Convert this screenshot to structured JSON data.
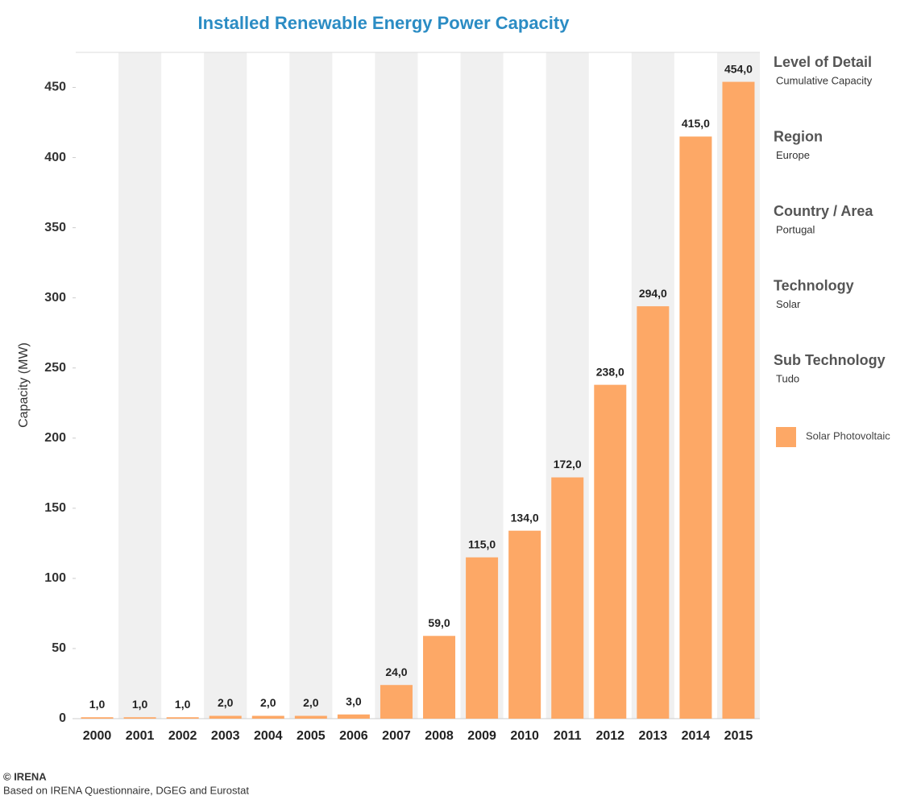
{
  "chart_data": {
    "type": "bar",
    "title": "Installed Renewable Energy Power Capacity",
    "y_label": "Capacity (MW)",
    "categories": [
      "2000",
      "2001",
      "2002",
      "2003",
      "2004",
      "2005",
      "2006",
      "2007",
      "2008",
      "2009",
      "2010",
      "2011",
      "2012",
      "2013",
      "2014",
      "2015"
    ],
    "series": [
      {
        "name": "Solar Photovoltaic",
        "color": "#fda866",
        "values": [
          1,
          1,
          1,
          2,
          2,
          2,
          3,
          24,
          59,
          115,
          134,
          172,
          238,
          294,
          415,
          454
        ],
        "value_labels": [
          "1,0",
          "1,0",
          "1,0",
          "2,0",
          "2,0",
          "2,0",
          "3,0",
          "24,0",
          "59,0",
          "115,0",
          "134,0",
          "172,0",
          "238,0",
          "294,0",
          "415,0",
          "454,0"
        ]
      }
    ],
    "ylim": [
      0,
      475
    ],
    "yticks": [
      0,
      50,
      100,
      150,
      200,
      250,
      300,
      350,
      400,
      450
    ],
    "band_shading": true,
    "filters": [
      {
        "title": "Level of Detail",
        "value": "Cumulative Capacity"
      },
      {
        "title": "Region",
        "value": "Europe"
      },
      {
        "title": "Country / Area",
        "value": "Portugal"
      },
      {
        "title": "Technology",
        "value": "Solar"
      },
      {
        "title": "Sub Technology",
        "value": "Tudo"
      }
    ],
    "source": [
      "© IRENA",
      "Based on IRENA Questionnaire, DGEG and Eurostat"
    ]
  }
}
